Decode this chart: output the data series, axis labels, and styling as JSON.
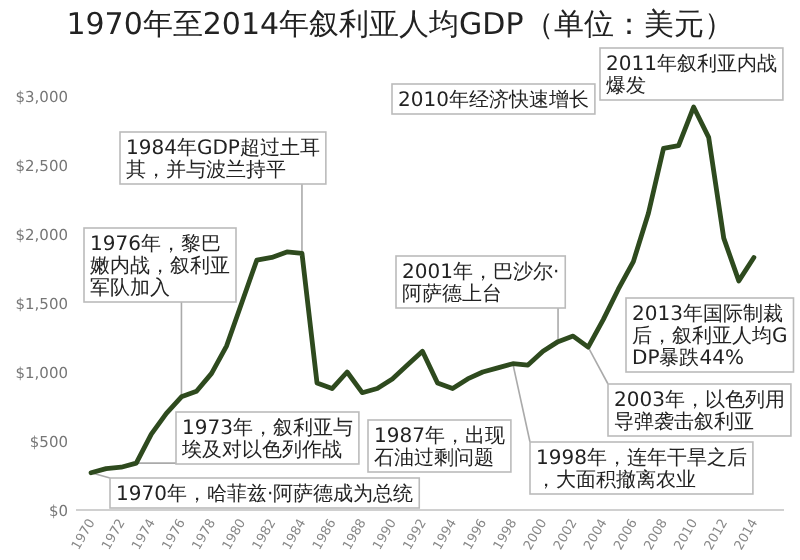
{
  "chart_data": {
    "type": "line",
    "title": "1970年至2014年叙利亚人均GDP（单位：美元）",
    "x": [
      1970,
      1971,
      1972,
      1973,
      1974,
      1975,
      1976,
      1977,
      1978,
      1979,
      1980,
      1981,
      1982,
      1983,
      1984,
      1985,
      1986,
      1987,
      1988,
      1989,
      1990,
      1991,
      1992,
      1993,
      1994,
      1995,
      1996,
      1997,
      1998,
      1999,
      2000,
      2001,
      2002,
      2003,
      2004,
      2005,
      2006,
      2007,
      2008,
      2009,
      2010,
      2011,
      2012,
      2013,
      2014
    ],
    "series": [
      {
        "color": "#2e4a1e",
        "values": [
          270,
          300,
          310,
          340,
          550,
          700,
          820,
          860,
          990,
          1190,
          1500,
          1810,
          1830,
          1870,
          1860,
          920,
          880,
          1000,
          850,
          880,
          950,
          1050,
          1150,
          920,
          880,
          950,
          1000,
          1030,
          1060,
          1050,
          1150,
          1220,
          1260,
          1180,
          1380,
          1600,
          1800,
          2150,
          2620,
          2640,
          2920,
          2700,
          1970,
          1660,
          1830
        ]
      }
    ],
    "xlim": [
      1969,
      2016
    ],
    "ylim": [
      0,
      3000
    ],
    "xticks": [
      1970,
      1972,
      1974,
      1976,
      1978,
      1980,
      1982,
      1984,
      1986,
      1988,
      1990,
      1992,
      1994,
      1996,
      1998,
      2000,
      2002,
      2004,
      2006,
      2008,
      2010,
      2012,
      2014
    ],
    "yticks": [
      {
        "value": 0,
        "label": "$0"
      },
      {
        "value": 500,
        "label": "$500"
      },
      {
        "value": 1000,
        "label": "$1,000"
      },
      {
        "value": 1500,
        "label": "$1,500"
      },
      {
        "value": 2000,
        "label": "$2,000"
      },
      {
        "value": 2500,
        "label": "$2,500"
      },
      {
        "value": 3000,
        "label": "$3,000"
      }
    ],
    "annotations": [
      {
        "text": "1970年，哈菲兹·阿萨德成为总统",
        "x": 1970,
        "y": 270
      },
      {
        "text": "1973年，叙利亚与埃及对以色列作战",
        "x": 1973,
        "y": 340
      },
      {
        "text": "1976年，黎巴嫩内战，叙利亚军队加入",
        "x": 1976,
        "y": 820
      },
      {
        "text": "1984年GDP超过土耳其，并与波兰持平",
        "x": 1984,
        "y": 1860
      },
      "1987年，出现石油过剩问题",
      {
        "text": "1998年，连年干旱之后，大面积撤离农业",
        "x": 1998,
        "y": 1060
      },
      {
        "text": "2001年，巴沙尔·阿萨德上台",
        "x": 2001,
        "y": 1220
      },
      {
        "text": "2003年，以色列用导弹袭击叙利亚",
        "x": 2003,
        "y": 1180
      },
      "2010年经济快速增长",
      "2011年叙利亚内战爆发",
      "2013年国际制裁后，叙利亚人均GDP暴跌44%"
    ]
  }
}
